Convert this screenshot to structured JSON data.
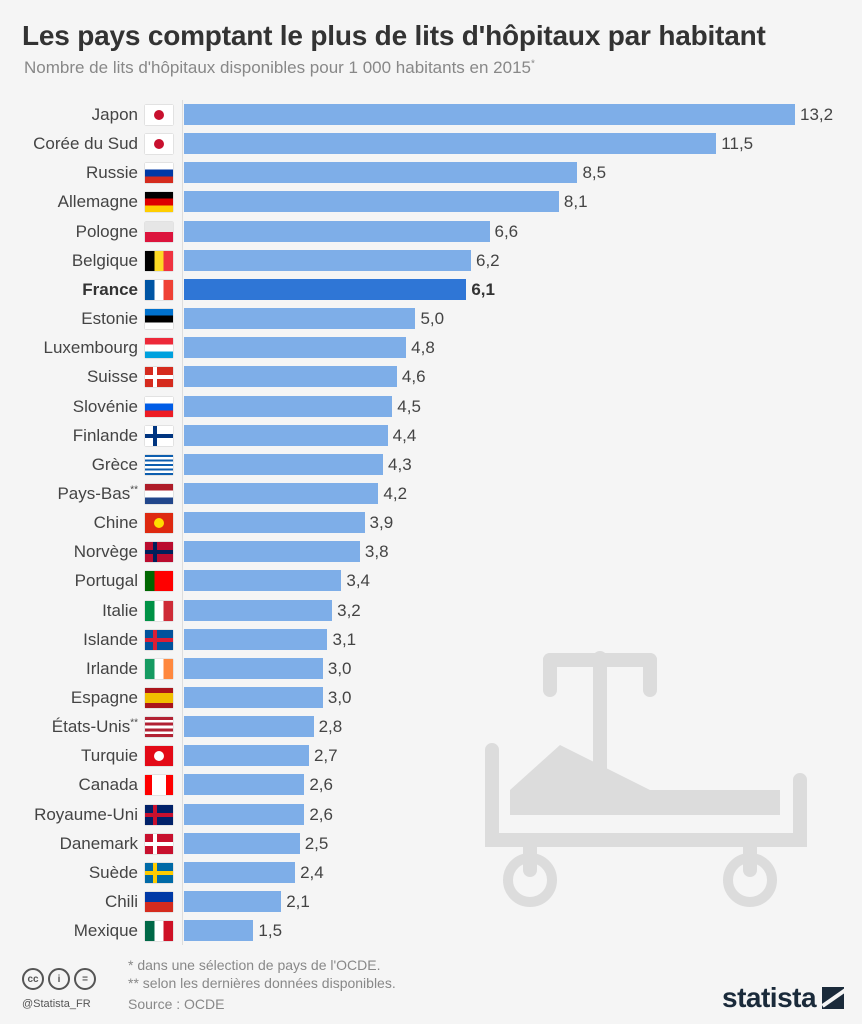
{
  "title": "Les pays comptant le plus de lits d'hôpitaux par habitant",
  "subtitle": "Nombre de lits d'hôpitaux disponibles pour 1 000 habitants en 2015",
  "subtitle_mark": "*",
  "colors": {
    "bar": "#7eaee8",
    "highlight": "#2f76d6"
  },
  "chart_data": {
    "type": "bar",
    "orientation": "horizontal",
    "title": "Les pays comptant le plus de lits d'hôpitaux par habitant",
    "unit": "lits pour 1 000 habitants",
    "xlim": [
      0,
      13.2
    ],
    "highlight": "France",
    "categories": [
      "Japon",
      "Corée du Sud",
      "Russie",
      "Allemagne",
      "Pologne",
      "Belgique",
      "France",
      "Estonie",
      "Luxembourg",
      "Suisse",
      "Slovénie",
      "Finlande",
      "Grèce",
      "Pays-Bas",
      "Chine",
      "Norvège",
      "Portugal",
      "Italie",
      "Islande",
      "Irlande",
      "Espagne",
      "États-Unis",
      "Turquie",
      "Canada",
      "Royaume-Uni",
      "Danemark",
      "Suède",
      "Chili",
      "Mexique"
    ],
    "markers": [
      "",
      "",
      "",
      "",
      "",
      "",
      "",
      "",
      "",
      "",
      "",
      "",
      "",
      "**",
      "",
      "",
      "",
      "",
      "",
      "",
      "",
      "**",
      "",
      "",
      "",
      "",
      "",
      "",
      ""
    ],
    "values": [
      13.2,
      11.5,
      8.5,
      8.1,
      6.6,
      6.2,
      6.1,
      5.0,
      4.8,
      4.6,
      4.5,
      4.4,
      4.3,
      4.2,
      3.9,
      3.8,
      3.4,
      3.2,
      3.1,
      3.0,
      3.0,
      2.8,
      2.7,
      2.6,
      2.6,
      2.5,
      2.4,
      2.1,
      1.5
    ],
    "labels": [
      "13,2",
      "11,5",
      "8,5",
      "8,1",
      "6,6",
      "6,2",
      "6,1",
      "5,0",
      "4,8",
      "4,6",
      "4,5",
      "4,4",
      "4,3",
      "4,2",
      "3,9",
      "3,8",
      "3,4",
      "3,2",
      "3,1",
      "3,0",
      "3,0",
      "2,8",
      "2,7",
      "2,6",
      "2,6",
      "2,5",
      "2,4",
      "2,1",
      "1,5"
    ]
  },
  "flags": [
    {
      "d": "h",
      "c": [
        "#fff"
      ],
      "dot": "#c8102e"
    },
    {
      "d": "h",
      "c": [
        "#fff"
      ],
      "dot": "#c8102e"
    },
    {
      "d": "h",
      "c": [
        "#fff",
        "#0039a6",
        "#d52b1e"
      ]
    },
    {
      "d": "h",
      "c": [
        "#000",
        "#dd0000",
        "#ffce00"
      ]
    },
    {
      "d": "h",
      "c": [
        "#e6e6e6",
        "#dc143c"
      ]
    },
    {
      "d": "v",
      "c": [
        "#000",
        "#fdda24",
        "#ef3340"
      ]
    },
    {
      "d": "v",
      "c": [
        "#0055a4",
        "#fff",
        "#ef4135"
      ]
    },
    {
      "d": "h",
      "c": [
        "#0072ce",
        "#000",
        "#fff"
      ]
    },
    {
      "d": "h",
      "c": [
        "#ed2939",
        "#fff",
        "#00a1de"
      ]
    },
    {
      "d": "h",
      "c": [
        "#d52b1e"
      ],
      "cross": "#fff"
    },
    {
      "d": "h",
      "c": [
        "#fff",
        "#005ce6",
        "#ed1c24"
      ]
    },
    {
      "d": "h",
      "c": [
        "#fff"
      ],
      "cross": "#003580"
    },
    {
      "d": "h",
      "c": [
        "#0d5eaf",
        "#fff",
        "#0d5eaf",
        "#fff",
        "#0d5eaf",
        "#fff",
        "#0d5eaf",
        "#fff",
        "#0d5eaf"
      ]
    },
    {
      "d": "h",
      "c": [
        "#ae1c28",
        "#fff",
        "#21468b"
      ]
    },
    {
      "d": "h",
      "c": [
        "#de2910"
      ],
      "dot": "#ffde00"
    },
    {
      "d": "h",
      "c": [
        "#ba0c2f"
      ],
      "cross": "#00205b"
    },
    {
      "d": "v",
      "c": [
        "#006600",
        "#ff0000",
        "#ff0000"
      ]
    },
    {
      "d": "v",
      "c": [
        "#009246",
        "#fff",
        "#ce2b37"
      ]
    },
    {
      "d": "h",
      "c": [
        "#02529c"
      ],
      "cross": "#dc1e35"
    },
    {
      "d": "v",
      "c": [
        "#169b62",
        "#fff",
        "#ff883e"
      ]
    },
    {
      "d": "h",
      "c": [
        "#aa151b",
        "#f1bf00",
        "#f1bf00",
        "#aa151b"
      ]
    },
    {
      "d": "h",
      "c": [
        "#b22234",
        "#fff",
        "#b22234",
        "#fff",
        "#b22234",
        "#fff",
        "#b22234"
      ]
    },
    {
      "d": "h",
      "c": [
        "#e30a17"
      ],
      "dot": "#fff"
    },
    {
      "d": "v",
      "c": [
        "#ff0000",
        "#fff",
        "#fff",
        "#ff0000"
      ]
    },
    {
      "d": "h",
      "c": [
        "#012169"
      ],
      "cross": "#c8102e"
    },
    {
      "d": "h",
      "c": [
        "#c8102e"
      ],
      "cross": "#fff"
    },
    {
      "d": "h",
      "c": [
        "#006aa7"
      ],
      "cross": "#fecc00"
    },
    {
      "d": "h",
      "c": [
        "#0039a6",
        "#d52b1e"
      ]
    },
    {
      "d": "v",
      "c": [
        "#006847",
        "#fff",
        "#ce1126"
      ]
    }
  ],
  "notes": [
    "*   dans une sélection de pays de l'OCDE.",
    "** selon les dernières données disponibles."
  ],
  "source": "Source : OCDE",
  "handle": "@Statista_FR",
  "cc_icons": [
    "cc",
    "i",
    "="
  ],
  "logo": "statista"
}
